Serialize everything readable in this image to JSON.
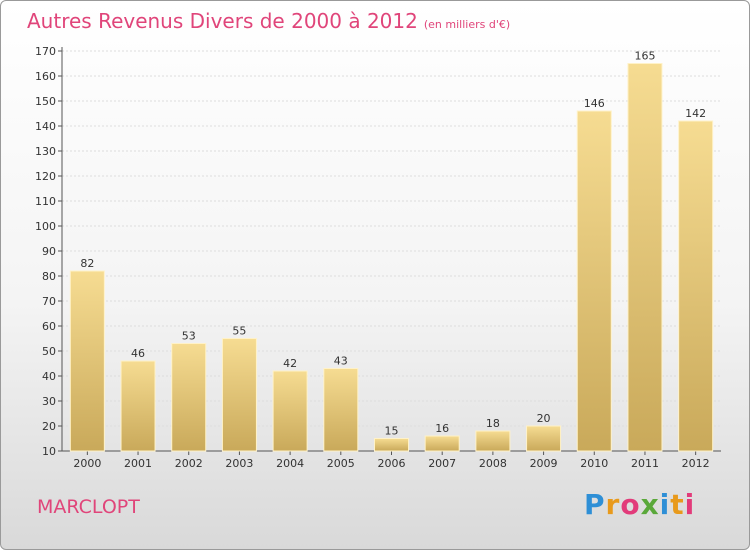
{
  "title": "Autres Revenus Divers de 2000 à 2012",
  "subtitle": "(en milliers d'€)",
  "city": "MARCLOPT",
  "logo": {
    "letters": [
      "P",
      "r",
      "o",
      "x",
      "i",
      "t",
      "i"
    ],
    "colors": [
      "#2e8fd6",
      "#e89a1c",
      "#e23b7a",
      "#5aa83a",
      "#2e8fd6",
      "#e89a1c",
      "#e23b7a"
    ]
  },
  "chart_data": {
    "type": "bar",
    "title": "Autres Revenus Divers de 2000 à 2012",
    "categories": [
      "2000",
      "2001",
      "2002",
      "2003",
      "2004",
      "2005",
      "2006",
      "2007",
      "2008",
      "2009",
      "2010",
      "2011",
      "2012"
    ],
    "values": [
      82,
      46,
      53,
      55,
      42,
      43,
      15,
      16,
      18,
      20,
      146,
      165,
      142
    ],
    "data_labels": [
      "82",
      "46",
      "53",
      "55",
      "42",
      "43",
      "15",
      "16",
      "18",
      "20",
      "146",
      "165",
      "142"
    ],
    "ylim": [
      10,
      170
    ],
    "yticks": [
      10,
      20,
      30,
      40,
      50,
      60,
      70,
      80,
      90,
      100,
      110,
      120,
      130,
      140,
      150,
      160,
      170
    ],
    "grid": true,
    "bar_color": "#dcc07a"
  }
}
